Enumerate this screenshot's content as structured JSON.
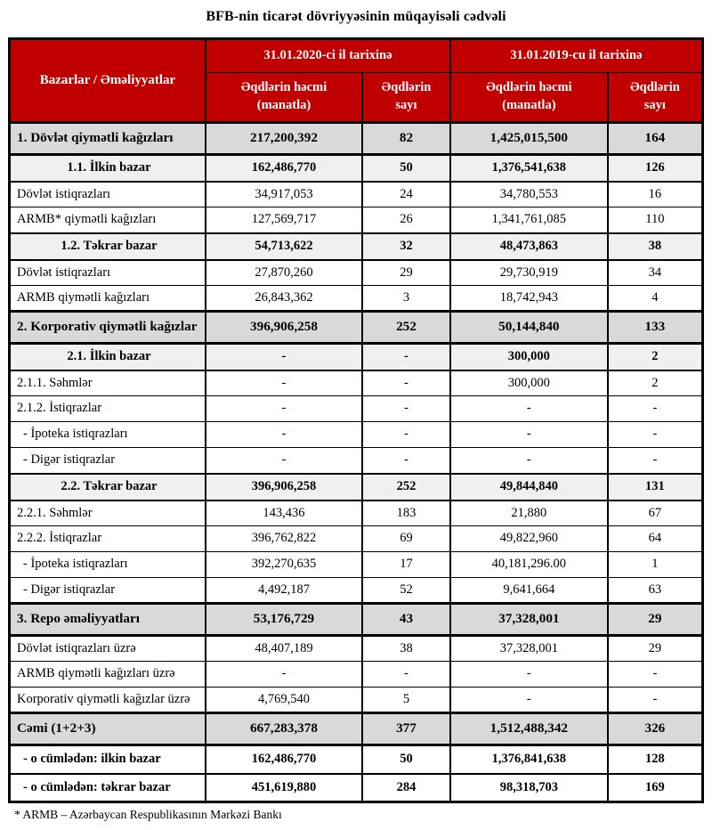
{
  "title": "BFB-nin ticarət dövriyyəsinin müqayisəli cədvəli",
  "footnote": "* ARMB – Azərbaycan Respublikasının Mərkəzi Bankı",
  "colors": {
    "header_bg": "#C00000",
    "header_text": "#FFFFFF",
    "section_row_bg": "#D9D9D9",
    "subsection_row_bg": "#F0F0F0",
    "border": "#000000"
  },
  "header": {
    "markets_label": "Bazarlar / Əməliyyatlar",
    "groups": [
      {
        "label": "31.01.2020-ci il tarixinə",
        "columns": [
          "Əqdlərin həcmi\n(manatla)",
          "Əqdlərin\nsayı"
        ]
      },
      {
        "label": "31.01.2019-cu il tarixinə",
        "columns": [
          "Əqdlərin həcmi\n(manatla)",
          "Əqdlərin\nsayı"
        ]
      }
    ]
  },
  "rows": [
    {
      "label": "1. Dövlət qiymətli kağızları",
      "variant": "section",
      "indent": false,
      "values": [
        "217,200,392",
        "82",
        "1,425,015,500",
        "164"
      ]
    },
    {
      "label": "1.1. İlkin bazar",
      "variant": "subsection",
      "indent": false,
      "values": [
        "162,486,770",
        "50",
        "1,376,541,638",
        "126"
      ]
    },
    {
      "label": "Dövlət istiqrazları",
      "variant": "normal",
      "indent": false,
      "values": [
        "34,917,053",
        "24",
        "34,780,553",
        "16"
      ]
    },
    {
      "label": "ARMB* qiymətli kağızları",
      "variant": "normal",
      "indent": false,
      "values": [
        "127,569,717",
        "26",
        "1,341,761,085",
        "110"
      ]
    },
    {
      "label": "1.2. Təkrar bazar",
      "variant": "subsection",
      "indent": false,
      "values": [
        "54,713,622",
        "32",
        "48,473,863",
        "38"
      ]
    },
    {
      "label": "Dövlət istiqrazları",
      "variant": "normal",
      "indent": false,
      "values": [
        "27,870,260",
        "29",
        "29,730,919",
        "34"
      ]
    },
    {
      "label": "ARMB qiymətli kağızları",
      "variant": "normal",
      "indent": false,
      "values": [
        "26,843,362",
        "3",
        "18,742,943",
        "4"
      ]
    },
    {
      "label": "2. Korporativ qiymətli kağızlar",
      "variant": "section",
      "indent": false,
      "values": [
        "396,906,258",
        "252",
        "50,144,840",
        "133"
      ]
    },
    {
      "label": "2.1. İlkin bazar",
      "variant": "subsection",
      "indent": false,
      "values": [
        "-",
        "-",
        "300,000",
        "2"
      ]
    },
    {
      "label": "2.1.1. Səhmlər",
      "variant": "normal",
      "indent": false,
      "values": [
        "-",
        "-",
        "300,000",
        "2"
      ]
    },
    {
      "label": "2.1.2. İstiqrazlar",
      "variant": "normal",
      "indent": false,
      "values": [
        "-",
        "-",
        "-",
        "-"
      ]
    },
    {
      "label": "- İpoteka istiqrazları",
      "variant": "normal",
      "indent": true,
      "values": [
        "-",
        "-",
        "-",
        "-"
      ]
    },
    {
      "label": "- Digər istiqrazlar",
      "variant": "normal",
      "indent": true,
      "values": [
        "-",
        "-",
        "-",
        "-"
      ]
    },
    {
      "label": "2.2. Təkrar bazar",
      "variant": "subsection",
      "indent": false,
      "values": [
        "396,906,258",
        "252",
        "49,844,840",
        "131"
      ]
    },
    {
      "label": "2.2.1. Səhmlər",
      "variant": "normal",
      "indent": false,
      "values": [
        "143,436",
        "183",
        "21,880",
        "67"
      ]
    },
    {
      "label": "2.2.2. İstiqrazlar",
      "variant": "normal",
      "indent": false,
      "values": [
        "396,762,822",
        "69",
        "49,822,960",
        "64"
      ]
    },
    {
      "label": "- İpoteka istiqrazları",
      "variant": "normal",
      "indent": true,
      "values": [
        "392,270,635",
        "17",
        "40,181,296.00",
        "1"
      ]
    },
    {
      "label": "- Digər istiqrazlar",
      "variant": "normal",
      "indent": true,
      "values": [
        "4,492,187",
        "52",
        "9,641,664",
        "63"
      ]
    },
    {
      "label": "3. Repo əməliyyatları",
      "variant": "section",
      "indent": false,
      "values": [
        "53,176,729",
        "43",
        "37,328,001",
        "29"
      ]
    },
    {
      "label": "Dövlət istiqrazları üzrə",
      "variant": "normal",
      "indent": false,
      "values": [
        "48,407,189",
        "38",
        "37,328,001",
        "29"
      ]
    },
    {
      "label": "ARMB qiymətli kağızları üzrə",
      "variant": "normal",
      "indent": false,
      "values": [
        "-",
        "-",
        "-",
        "-"
      ]
    },
    {
      "label": "Korporativ qiymətli kağızlar üzrə",
      "variant": "normal",
      "indent": false,
      "values": [
        "4,769,540",
        "5",
        "-",
        "-"
      ]
    },
    {
      "label": "Cəmi (1+2+3)",
      "variant": "section",
      "indent": false,
      "values": [
        "667,283,378",
        "377",
        "1,512,488,342",
        "326"
      ]
    },
    {
      "label": "- o cümlədən: ilkin bazar",
      "variant": "bold",
      "indent": true,
      "values": [
        "162,486,770",
        "50",
        "1,376,841,638",
        "128"
      ]
    },
    {
      "label": "- o cümlədən: təkrar bazar",
      "variant": "bold",
      "indent": true,
      "values": [
        "451,619,880",
        "284",
        "98,318,703",
        "169"
      ]
    }
  ]
}
